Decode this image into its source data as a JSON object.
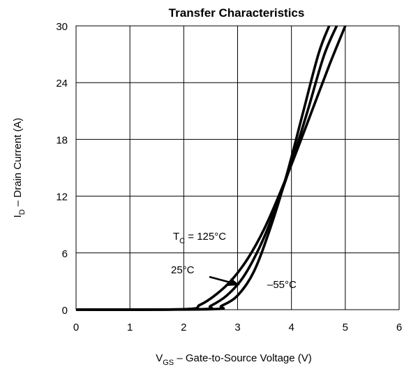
{
  "chart_data": {
    "type": "line",
    "title": "Transfer Characteristics",
    "xlabel": {
      "main": "V",
      "sub": "GS",
      "rest": " – Gate-to-Source Voltage (V)"
    },
    "ylabel": {
      "main": "I",
      "sub": "D",
      "rest": " – Drain Current (A)"
    },
    "xlim": [
      0,
      6
    ],
    "ylim": [
      0,
      30
    ],
    "xticks": [
      0,
      1,
      2,
      3,
      4,
      5,
      6
    ],
    "yticks": [
      0,
      6,
      12,
      18,
      24,
      30
    ],
    "grid": true,
    "series": [
      {
        "name": "T_C = 125°C",
        "x": [
          0,
          2.0,
          2.3,
          2.6,
          2.9,
          3.2,
          3.5,
          3.8,
          4.1,
          4.4,
          4.7,
          5.0
        ],
        "y": [
          0,
          0.05,
          0.5,
          1.6,
          3.2,
          5.5,
          8.6,
          12.5,
          16.8,
          21.3,
          25.8,
          30
        ]
      },
      {
        "name": "25°C",
        "x": [
          0,
          2.3,
          2.5,
          2.8,
          3.1,
          3.4,
          3.7,
          4.0,
          4.3,
          4.6,
          4.84
        ],
        "y": [
          0,
          0.05,
          0.4,
          1.5,
          3.4,
          6.5,
          10.6,
          15.5,
          21.0,
          26.8,
          30
        ]
      },
      {
        "name": "–55°C",
        "x": [
          0,
          2.5,
          2.7,
          3.0,
          3.3,
          3.6,
          3.9,
          4.2,
          4.5,
          4.7
        ],
        "y": [
          0,
          0.05,
          0.4,
          1.5,
          4.0,
          8.5,
          14.0,
          20.5,
          27.0,
          30
        ]
      }
    ],
    "annotations": [
      {
        "main": "T",
        "sub": "C",
        "rest": " = 125°C"
      },
      {
        "text": "25°C"
      },
      {
        "text": "–55°C"
      }
    ]
  }
}
